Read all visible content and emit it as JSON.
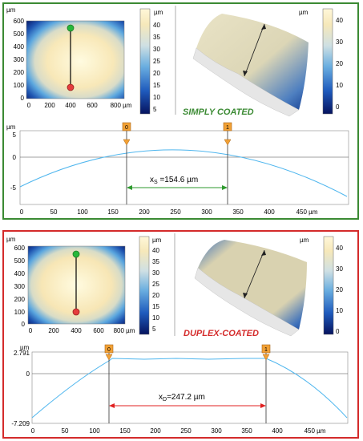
{
  "colors": {
    "panel_top_border": "#3b8a33",
    "panel_bottom_border": "#d42b2b",
    "profile_line": "#4fb6ee",
    "marker_orange": "#f2a135",
    "arrow_green": "#2e9a2e",
    "arrow_red": "#e02020"
  },
  "unit": "µm",
  "panels": [
    {
      "id": "simply",
      "caption": "SIMPLY COATED",
      "map_y_ticks": [
        "600",
        "500",
        "400",
        "300",
        "200",
        "100",
        "0"
      ],
      "map_x_ticks": [
        "0",
        "200",
        "400",
        "600",
        "800 µm"
      ],
      "colorbar_ticks": [
        "40",
        "35",
        "30",
        "25",
        "20",
        "15",
        "10",
        "5",
        "0"
      ],
      "profile_y_ticks": [
        "5",
        "0",
        "-5"
      ],
      "profile_x_ticks": [
        "0",
        "50",
        "100",
        "150",
        "200",
        "250",
        "300",
        "350",
        "400",
        "450 µm"
      ],
      "marker_0": "0",
      "marker_1": "1",
      "measure_var": "x",
      "measure_sub": "S",
      "measure_val": " =154.6 µm"
    },
    {
      "id": "duplex",
      "caption": "DUPLEX-COATED",
      "map_y_ticks": [
        "600",
        "500",
        "400",
        "300",
        "200",
        "100",
        "0"
      ],
      "map_x_ticks": [
        "0",
        "200",
        "400",
        "600",
        "800 µm"
      ],
      "colorbar_ticks": [
        "40",
        "35",
        "30",
        "25",
        "20",
        "15",
        "10",
        "5",
        "0"
      ],
      "profile_y_ticks": [
        "2.791",
        "0",
        "-7.209"
      ],
      "profile_x_ticks": [
        "0",
        "50",
        "100",
        "150",
        "200",
        "250",
        "300",
        "350",
        "400",
        "450 µm"
      ],
      "marker_0": "0",
      "marker_1": "1",
      "measure_var": "x",
      "measure_sub": "D",
      "measure_val": "=247.2 µm"
    }
  ]
}
